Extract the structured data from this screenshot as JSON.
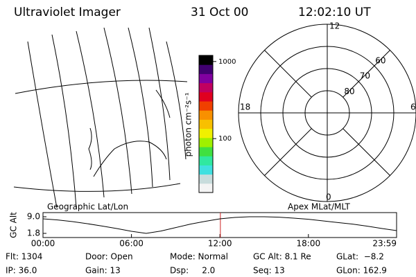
{
  "header": {
    "title": "Ultraviolet Imager",
    "date": "31 Oct 00",
    "time": "12:02:10 UT"
  },
  "map": {
    "label": "Geographic Lat/Lon"
  },
  "colorbar": {
    "label": "photon cm⁻²s⁻¹",
    "log": true,
    "clim": [
      20,
      1200
    ],
    "ticks": [
      100,
      1000
    ],
    "colors": [
      "#f4f4f4",
      "#c8dcdc",
      "#40e0e0",
      "#30e8a0",
      "#40e040",
      "#a0f000",
      "#f0f000",
      "#f8c000",
      "#f89000",
      "#f04000",
      "#e00020",
      "#c00060",
      "#8000a0",
      "#400070",
      "#000000"
    ]
  },
  "polar": {
    "label": "Apex MLat/MLT",
    "rlim": [
      90,
      50
    ],
    "rings": [
      80,
      70,
      60
    ],
    "mlt": [
      "12",
      "18",
      "6",
      "0"
    ]
  },
  "altitude": {
    "ylabel": "GC Alt",
    "xlim": [
      0,
      23.98
    ],
    "ylim": [
      0,
      10.8
    ],
    "yticks": [
      {
        "value": 9,
        "label": "9.0"
      },
      {
        "value": 1.8,
        "label": "1.8"
      }
    ],
    "xticks": [
      {
        "value": 0,
        "label": "00:00"
      },
      {
        "value": 6,
        "label": "06:00"
      },
      {
        "value": 12,
        "label": "12:00"
      },
      {
        "value": 18,
        "label": "18:00"
      },
      {
        "value": 23.98,
        "label": "23:59"
      }
    ],
    "current": 12.03,
    "color": "#000000",
    "marker_color": "#cc2222",
    "x": [
      0,
      1,
      2,
      3,
      4,
      5,
      6,
      7,
      8,
      9,
      10,
      11,
      12,
      13,
      14,
      15,
      16,
      17,
      18,
      19,
      20,
      21,
      22,
      23,
      23.98
    ],
    "values": [
      8.1,
      7.6,
      6.9,
      6.0,
      5.0,
      3.9,
      2.7,
      1.8,
      2.8,
      4.3,
      5.8,
      7.0,
      8.1,
      8.7,
      9.0,
      9.0,
      8.8,
      8.4,
      7.9,
      7.2,
      6.5,
      5.8,
      4.9,
      3.9,
      3.0
    ]
  },
  "info": [
    [
      "Flt: 1304",
      "Door: Open",
      "Mode: Normal",
      "GC Alt: 8.1 Re",
      "GLat:  −8.2"
    ],
    [
      "IP: 36.0",
      "Gain: 13",
      "Dsp:     2.0",
      "Seq: 13",
      "GLon: 162.9"
    ]
  ]
}
